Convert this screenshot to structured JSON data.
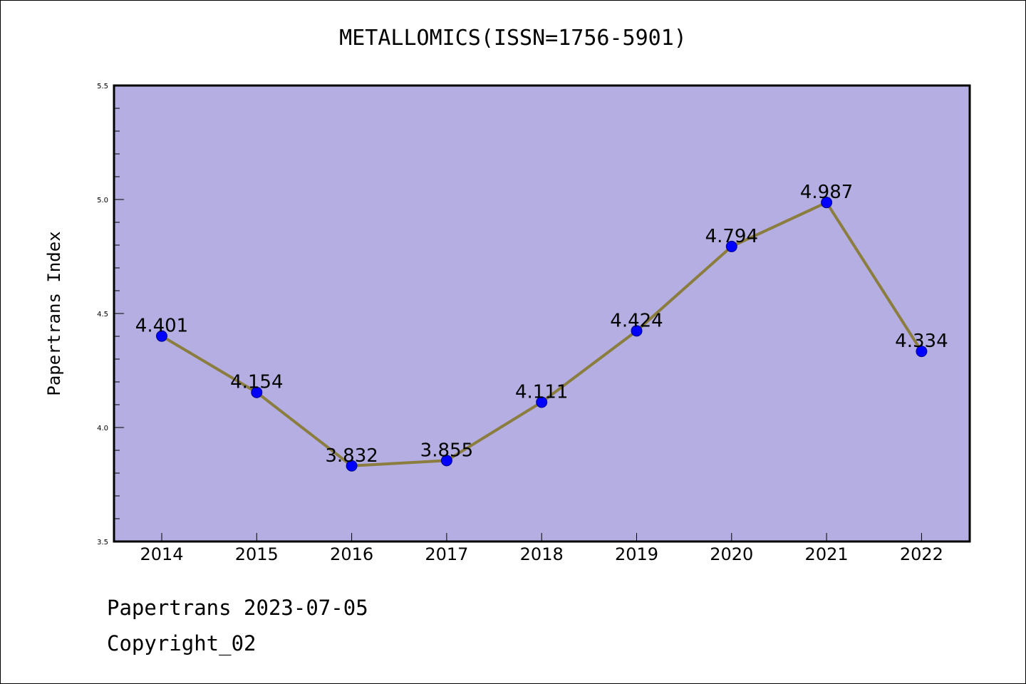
{
  "footer": {
    "line1": "Papertrans 2023-07-05",
    "line2": "Copyright_02"
  },
  "colors": {
    "plot_background": "#b4aee2",
    "line": "#8b7d3e",
    "marker": "#0000ff"
  },
  "chart_data": {
    "type": "line",
    "title": "METALLOMICS(ISSN=1756-5901)",
    "xlabel": "",
    "ylabel": "Papertrans Index",
    "categories": [
      "2014",
      "2015",
      "2016",
      "2017",
      "2018",
      "2019",
      "2020",
      "2021",
      "2022"
    ],
    "values": [
      4.401,
      4.154,
      3.832,
      3.855,
      4.111,
      4.424,
      4.794,
      4.987,
      4.334
    ],
    "data_labels": [
      "4.401",
      "4.154",
      "3.832",
      "3.855",
      "4.111",
      "4.424",
      "4.794",
      "4.987",
      "4.334"
    ],
    "ylim": [
      3.5,
      5.5
    ],
    "yticks": [
      "3.5",
      "4.0",
      "4.5",
      "5.0",
      "5.5"
    ],
    "grid": false,
    "legend": "none"
  }
}
